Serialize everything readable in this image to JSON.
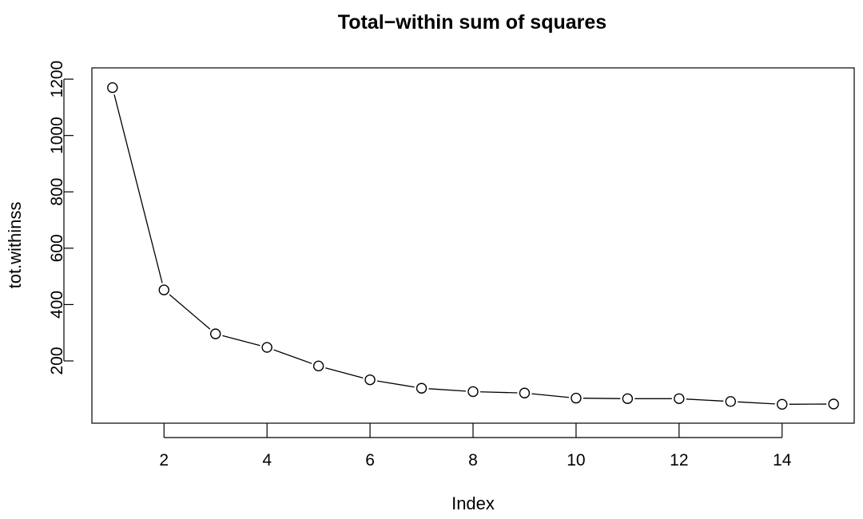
{
  "chart_data": {
    "type": "line",
    "title": "Total−within sum of squares",
    "xlabel": "Index",
    "ylabel": "tot.withinss",
    "x": [
      1,
      2,
      3,
      4,
      5,
      6,
      7,
      8,
      9,
      10,
      11,
      12,
      13,
      14,
      15
    ],
    "series": [
      {
        "values": [
          1170,
          452,
          296,
          248,
          182,
          133,
          103,
          91,
          86,
          68,
          66,
          66,
          56,
          46,
          47
        ]
      }
    ],
    "xlim": [
      0.6,
      15.4
    ],
    "ylim": [
      -21,
      1240
    ],
    "xticks": [
      2,
      4,
      6,
      8,
      10,
      12,
      14
    ],
    "yticks": [
      200,
      400,
      600,
      800,
      1000,
      1200
    ],
    "marker": "open-circle",
    "line_color": "#000000",
    "grid": false,
    "legend": "none"
  }
}
